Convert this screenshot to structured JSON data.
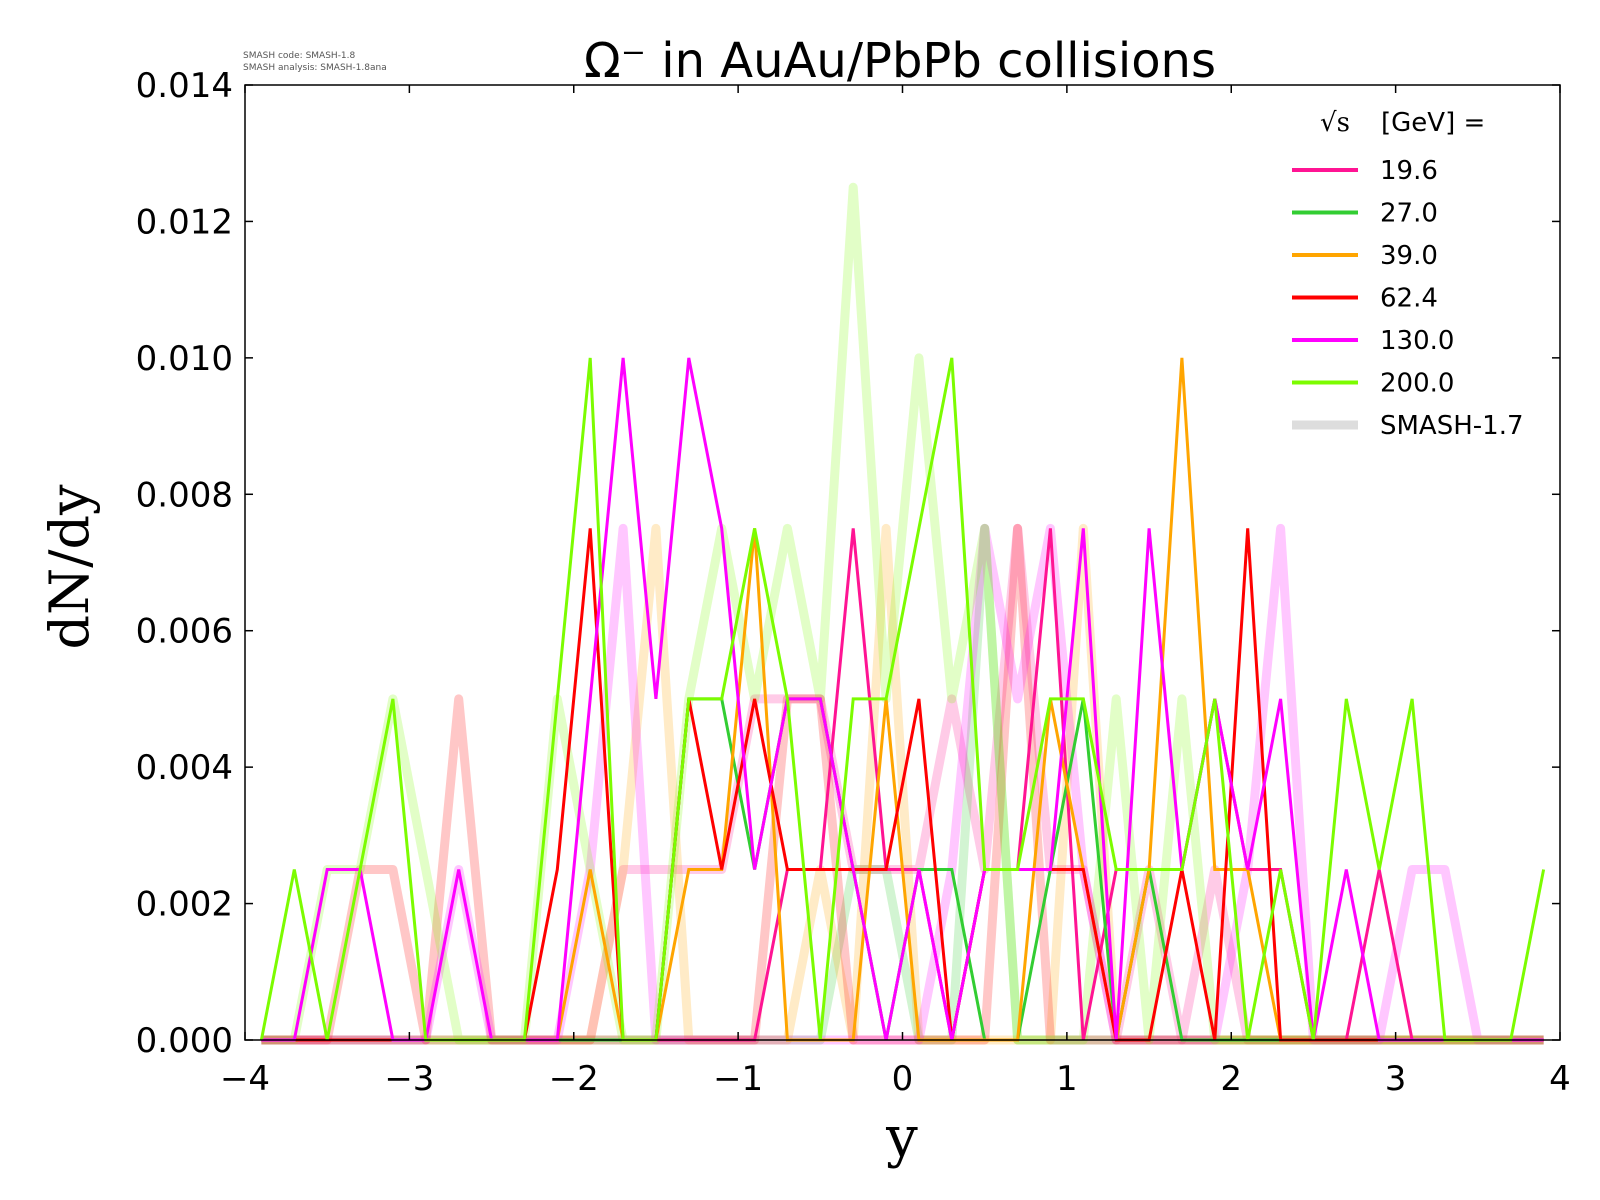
{
  "chart_data": {
    "type": "line",
    "title": "Ω⁻ in AuAu/PbPb collisions",
    "xlabel": "y",
    "ylabel": "dN/dy",
    "xlim": [
      -4,
      4
    ],
    "ylim": [
      0,
      0.014
    ],
    "xticks": [
      -4,
      -3,
      -2,
      -1,
      0,
      1,
      2,
      3,
      4
    ],
    "xtick_labels": [
      "−4",
      "−3",
      "−2",
      "−1",
      "0",
      "1",
      "2",
      "3",
      "4"
    ],
    "yticks": [
      0,
      0.002,
      0.004,
      0.006,
      0.008,
      0.01,
      0.012,
      0.014
    ],
    "ytick_labels": [
      "0.000",
      "0.002",
      "0.004",
      "0.006",
      "0.008",
      "0.010",
      "0.012",
      "0.014"
    ],
    "grid": false,
    "legend_title": "[GeV] =",
    "legend_title_symbol": "√s",
    "legend_placement": "top-right",
    "stamp": [
      "SMASH code:      SMASH-1.8",
      "SMASH analysis: SMASH-1.8ana"
    ],
    "x": [
      -3.9,
      -3.7,
      -3.5,
      -3.3,
      -3.1,
      -2.9,
      -2.7,
      -2.5,
      -2.3,
      -2.1,
      -1.9,
      -1.7,
      -1.5,
      -1.3,
      -1.1,
      -0.9,
      -0.7,
      -0.5,
      -0.3,
      -0.1,
      0.1,
      0.3,
      0.5,
      0.7,
      0.9,
      1.1,
      1.3,
      1.5,
      1.7,
      1.9,
      2.1,
      2.3,
      2.5,
      2.7,
      2.9,
      3.1,
      3.3,
      3.5,
      3.7,
      3.9
    ],
    "series": [
      {
        "name": "19.6",
        "color": "#ff1493",
        "width": 3,
        "opacity": 1,
        "values": [
          0,
          0,
          0,
          0,
          0,
          0,
          0,
          0,
          0,
          0,
          0,
          0,
          0,
          0,
          0,
          0,
          0.0025,
          0.0025,
          0.0075,
          0.0025,
          0.0025,
          0,
          0.0025,
          0.0025,
          0.0075,
          0,
          0.0025,
          0.0025,
          0.0025,
          0.005,
          0.0025,
          0.0025,
          0,
          0,
          0.0025,
          0,
          0,
          0,
          0,
          0
        ]
      },
      {
        "name": "27.0",
        "color": "#32cd32",
        "width": 3,
        "opacity": 1,
        "values": [
          0,
          0,
          0,
          0,
          0,
          0,
          0,
          0,
          0,
          0,
          0,
          0,
          0,
          0.005,
          0.005,
          0.0025,
          0.005,
          0.005,
          0.0025,
          0,
          0.0025,
          0.0025,
          0,
          0,
          0.0025,
          0.005,
          0,
          0.0025,
          0,
          0,
          0,
          0,
          0,
          0,
          0,
          0,
          0,
          0,
          0,
          0
        ]
      },
      {
        "name": "39.0",
        "color": "#ffa500",
        "width": 3,
        "opacity": 1,
        "values": [
          0,
          0,
          0,
          0,
          0,
          0,
          0,
          0,
          0,
          0,
          0.0025,
          0,
          0,
          0.0025,
          0.0025,
          0.0075,
          0,
          0,
          0,
          0.005,
          0,
          0,
          0,
          0,
          0.005,
          0.0025,
          0,
          0.0025,
          0.01,
          0.0025,
          0.0025,
          0,
          0,
          0,
          0,
          0,
          0,
          0,
          0,
          0
        ]
      },
      {
        "name": "62.4",
        "color": "#ff0000",
        "width": 3,
        "opacity": 1,
        "values": [
          0,
          0,
          0,
          0,
          0,
          0,
          0,
          0,
          0,
          0.0025,
          0.0075,
          0,
          0,
          0.005,
          0.0025,
          0.005,
          0.0025,
          0.0025,
          0.0025,
          0.0025,
          0.005,
          0,
          0.0025,
          0.0025,
          0.0025,
          0.0025,
          0,
          0,
          0.0025,
          0,
          0.0075,
          0,
          0,
          0,
          0,
          0,
          0,
          0,
          0,
          0
        ]
      },
      {
        "name": "130.0",
        "color": "#ff00ff",
        "width": 3,
        "opacity": 1,
        "values": [
          0,
          0,
          0.0025,
          0.0025,
          0,
          0,
          0.0025,
          0,
          0,
          0,
          0.005,
          0.01,
          0.005,
          0.01,
          0.0075,
          0.0025,
          0.005,
          0.005,
          0.0025,
          0,
          0.0025,
          0,
          0.0025,
          0.0025,
          0.0025,
          0.0075,
          0,
          0.0075,
          0.0025,
          0.005,
          0.0025,
          0.005,
          0,
          0.0025,
          0,
          0,
          0,
          0,
          0,
          0
        ]
      },
      {
        "name": "200.0",
        "color": "#7cfc00",
        "width": 3,
        "opacity": 1,
        "values": [
          0,
          0.0025,
          0,
          0.0025,
          0.005,
          0,
          0,
          0,
          0,
          0.005,
          0.01,
          0,
          0,
          0.005,
          0.005,
          0.0075,
          0.005,
          0,
          0.005,
          0.005,
          0.0075,
          0.01,
          0.0025,
          0.0025,
          0.005,
          0.005,
          0.0025,
          0.0025,
          0.0025,
          0.005,
          0,
          0.0025,
          0,
          0.005,
          0.0025,
          0.005,
          0,
          0,
          0,
          0.0025
        ]
      }
    ],
    "reference": {
      "name": "SMASH-1.7",
      "legend_color": "#dddddd",
      "width": 9,
      "opacity": 0.22,
      "series": [
        {
          "color": "#ff1493",
          "values": [
            0,
            0,
            0,
            0,
            0,
            0,
            0,
            0,
            0,
            0,
            0,
            0.0025,
            0.0025,
            0.0025,
            0.0025,
            0.005,
            0.005,
            0.005,
            0.0025,
            0.0025,
            0.0025,
            0.005,
            0.0025,
            0.0075,
            0.0025,
            0.0025,
            0,
            0.0025,
            0,
            0.0025,
            0,
            0,
            0,
            0,
            0,
            0,
            0,
            0,
            0,
            0
          ]
        },
        {
          "color": "#32cd32",
          "values": [
            0,
            0,
            0,
            0,
            0,
            0,
            0,
            0,
            0,
            0,
            0,
            0,
            0,
            0,
            0,
            0,
            0,
            0,
            0.0025,
            0.0025,
            0,
            0,
            0.0075,
            0,
            0,
            0,
            0,
            0,
            0,
            0,
            0,
            0,
            0,
            0,
            0,
            0,
            0,
            0,
            0,
            0
          ]
        },
        {
          "color": "#ffa500",
          "values": [
            0,
            0,
            0,
            0,
            0,
            0,
            0,
            0,
            0,
            0,
            0,
            0.0025,
            0.0075,
            0,
            0,
            0,
            0,
            0.0025,
            0,
            0.0075,
            0,
            0,
            0,
            0,
            0,
            0.0075,
            0,
            0,
            0,
            0,
            0,
            0,
            0,
            0,
            0,
            0,
            0,
            0,
            0,
            0
          ]
        },
        {
          "color": "#ff0000",
          "values": [
            0,
            0,
            0,
            0.0025,
            0.0025,
            0,
            0.005,
            0,
            0,
            0,
            0,
            0,
            0,
            0,
            0,
            0,
            0.005,
            0.005,
            0,
            0,
            0,
            0,
            0,
            0.0075,
            0,
            0,
            0,
            0,
            0,
            0,
            0,
            0,
            0,
            0,
            0,
            0,
            0,
            0,
            0,
            0
          ]
        },
        {
          "color": "#ff00ff",
          "values": [
            0,
            0,
            0,
            0,
            0,
            0,
            0.0025,
            0,
            0,
            0,
            0.0025,
            0.0075,
            0,
            0,
            0,
            0,
            0,
            0,
            0,
            0,
            0,
            0.0025,
            0.0075,
            0.005,
            0.0075,
            0.0025,
            0,
            0,
            0,
            0,
            0.0025,
            0.0075,
            0,
            0,
            0,
            0.0025,
            0.0025,
            0,
            0,
            0
          ]
        },
        {
          "color": "#7cfc00",
          "values": [
            0,
            0,
            0.0025,
            0.0025,
            0.005,
            0.0025,
            0,
            0,
            0,
            0.005,
            0.0025,
            0,
            0,
            0.005,
            0.0075,
            0.005,
            0.0075,
            0.005,
            0.0125,
            0.005,
            0.01,
            0.005,
            0.0075,
            0,
            0,
            0,
            0.005,
            0,
            0.005,
            0,
            0,
            0,
            0,
            0,
            0,
            0,
            0,
            0,
            0,
            0
          ]
        }
      ]
    }
  }
}
